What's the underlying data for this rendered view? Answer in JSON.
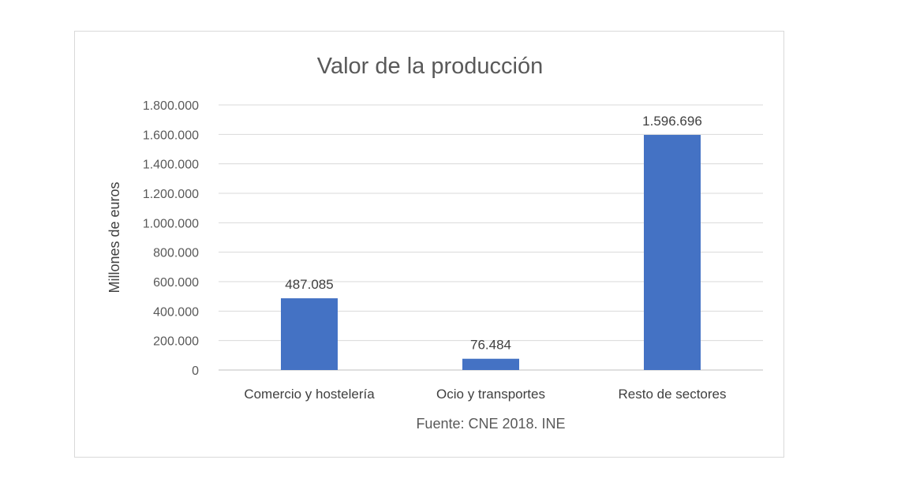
{
  "chart_data": {
    "type": "bar",
    "title": "Valor de la producción",
    "ylabel": "Millones de euros",
    "xlabel": "",
    "source": "Fuente: CNE 2018. INE",
    "categories": [
      "Comercio y hostelería",
      "Ocio y transportes",
      "Resto de sectores"
    ],
    "values": [
      487085,
      76484,
      1596696
    ],
    "value_labels": [
      "487.085",
      "76.484",
      "1.596.696"
    ],
    "ylim": [
      0,
      1800000
    ],
    "yticks": [
      0,
      200000,
      400000,
      600000,
      800000,
      1000000,
      1200000,
      1400000,
      1600000,
      1800000
    ],
    "ytick_labels": [
      "0",
      "200.000",
      "400.000",
      "600.000",
      "800.000",
      "1.000.000",
      "1.200.000",
      "1.400.000",
      "1.600.000",
      "1.800.000"
    ],
    "grid": true,
    "legend": "none",
    "bar_color": "#4472C4"
  }
}
